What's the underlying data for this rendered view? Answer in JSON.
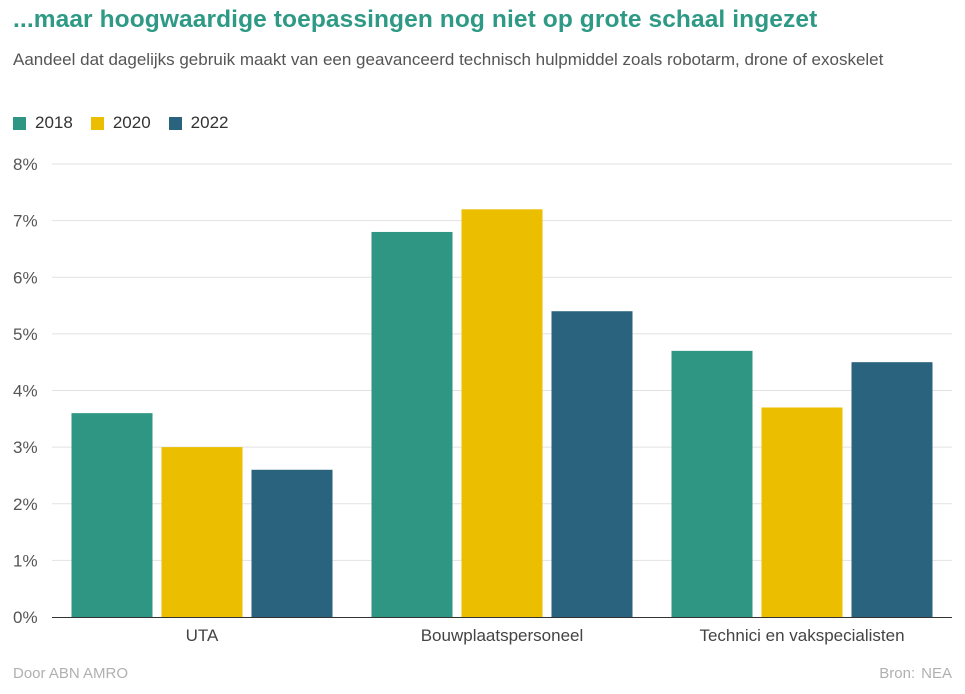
{
  "colors": {
    "title": "#2e9a85",
    "s2018": "#2e9683",
    "s2020": "#ecbe00",
    "s2022": "#29637e",
    "grid": "#e2e2e2",
    "axis": "#333333"
  },
  "header": {
    "title": "...maar hoogwaardige toepassingen nog niet op grote schaal ingezet",
    "subtitle": "Aandeel dat dagelijks gebruik maakt van een geavanceerd technisch hulpmiddel zoals robotarm, drone of exoskelet"
  },
  "footer": {
    "credit": "Door ABN AMRO",
    "source_label": "Bron:",
    "source": "NEA"
  },
  "chart_data": {
    "type": "bar",
    "title": "...maar hoogwaardige toepassingen nog niet op grote schaal ingezet",
    "subtitle": "Aandeel dat dagelijks gebruik maakt van een geavanceerd technisch hulpmiddel zoals robotarm, drone of exoskelet",
    "categories": [
      "UTA",
      "Bouwplaatspersoneel",
      "Technici en vakspecialisten"
    ],
    "series": [
      {
        "name": "2018",
        "values": [
          3.6,
          6.8,
          4.7
        ]
      },
      {
        "name": "2020",
        "values": [
          3.0,
          7.2,
          3.7
        ]
      },
      {
        "name": "2022",
        "values": [
          2.6,
          5.4,
          4.5
        ]
      }
    ],
    "ylim": [
      0,
      8
    ],
    "yticks": [
      0,
      1,
      2,
      3,
      4,
      5,
      6,
      7,
      8
    ],
    "ytick_labels": [
      "0%",
      "1%",
      "2%",
      "3%",
      "4%",
      "5%",
      "6%",
      "7%",
      "8%"
    ],
    "xlabel": "",
    "ylabel": "",
    "grid": true,
    "legend": "top-left"
  }
}
